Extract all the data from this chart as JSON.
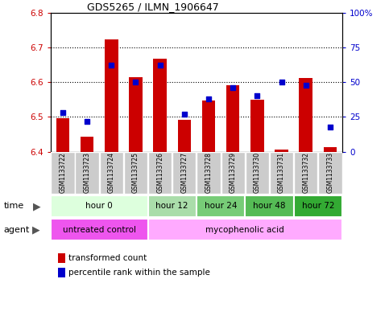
{
  "title": "GDS5265 / ILMN_1906647",
  "samples": [
    "GSM1133722",
    "GSM1133723",
    "GSM1133724",
    "GSM1133725",
    "GSM1133726",
    "GSM1133727",
    "GSM1133728",
    "GSM1133729",
    "GSM1133730",
    "GSM1133731",
    "GSM1133732",
    "GSM1133733"
  ],
  "bar_values": [
    6.497,
    6.443,
    6.723,
    6.614,
    6.668,
    6.491,
    6.548,
    6.591,
    6.549,
    6.405,
    6.612,
    6.412
  ],
  "bar_base": 6.4,
  "percentile_values": [
    28,
    22,
    62,
    50,
    62,
    27,
    38,
    46,
    40,
    50,
    48,
    18
  ],
  "ylim_left": [
    6.4,
    6.8
  ],
  "ylim_right": [
    0,
    100
  ],
  "yticks_left": [
    6.4,
    6.5,
    6.6,
    6.7,
    6.8
  ],
  "yticks_right": [
    0,
    25,
    50,
    75,
    100
  ],
  "ytick_labels_right": [
    "0",
    "25",
    "50",
    "75",
    "100%"
  ],
  "bar_color": "#cc0000",
  "dot_color": "#0000cc",
  "bar_width": 0.55,
  "grid_color": "black",
  "time_groups": [
    {
      "label": "hour 0",
      "start": 0,
      "end": 3,
      "color": "#ddffdd"
    },
    {
      "label": "hour 12",
      "start": 4,
      "end": 5,
      "color": "#aaddaa"
    },
    {
      "label": "hour 24",
      "start": 6,
      "end": 7,
      "color": "#77cc77"
    },
    {
      "label": "hour 48",
      "start": 8,
      "end": 9,
      "color": "#55bb55"
    },
    {
      "label": "hour 72",
      "start": 10,
      "end": 11,
      "color": "#33aa33"
    }
  ],
  "agent_untreated_color": "#ee55ee",
  "agent_myco_color": "#ffaaff",
  "sample_bg_color": "#cccccc",
  "left_tick_color": "#cc0000",
  "right_tick_color": "#0000cc",
  "legend_bar_label": "transformed count",
  "legend_dot_label": "percentile rank within the sample"
}
